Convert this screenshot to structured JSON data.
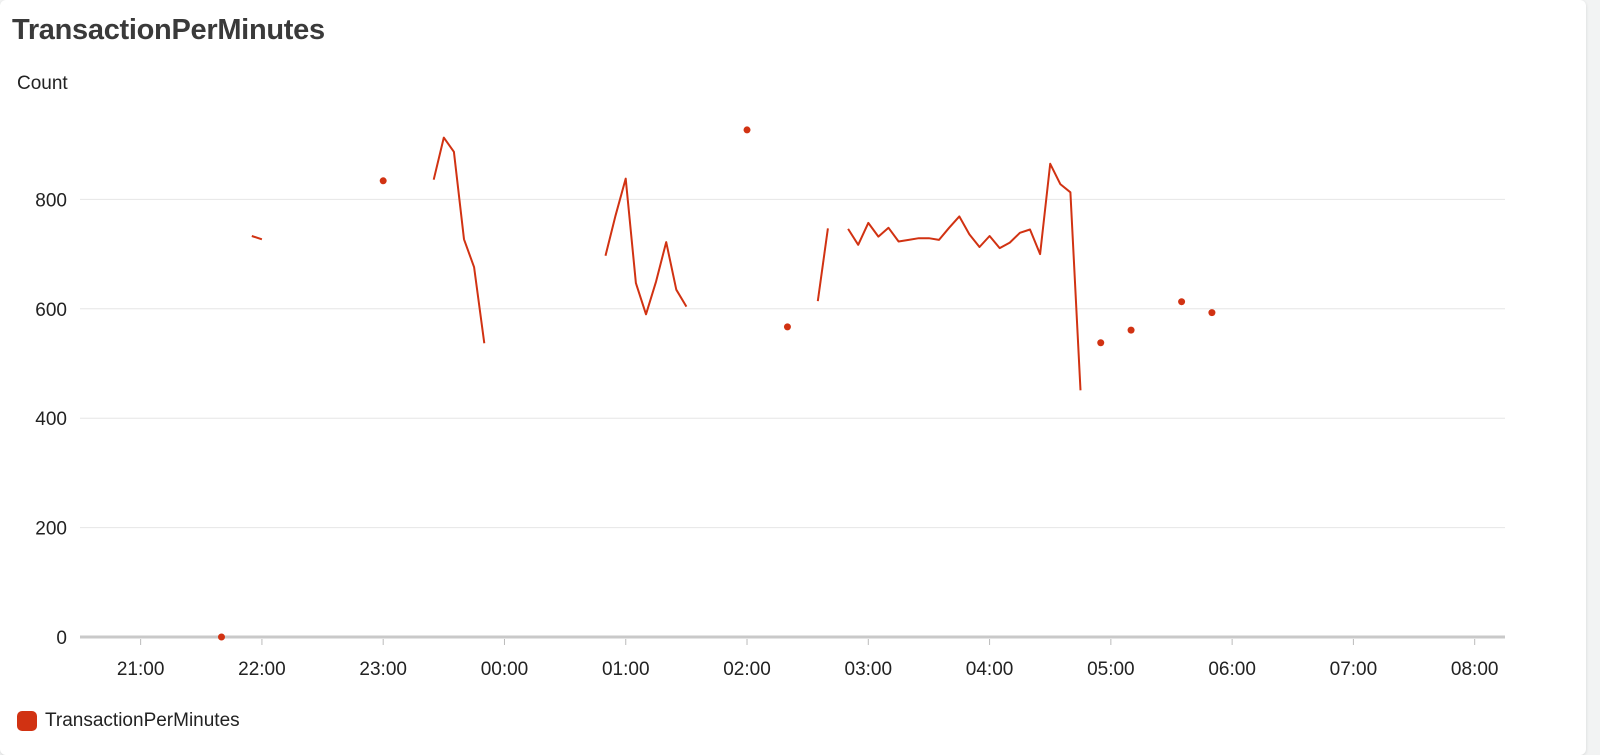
{
  "chart_data": {
    "type": "line",
    "title": "TransactionPerMinutes",
    "ylabel": "Count",
    "xlabel": "",
    "ylim": [
      0,
      1000
    ],
    "yticks": [
      0,
      200,
      400,
      600,
      800
    ],
    "xlim": [
      "20:30",
      "08:15"
    ],
    "xticks": [
      "21:00",
      "22:00",
      "23:00",
      "00:00",
      "01:00",
      "02:00",
      "03:00",
      "04:00",
      "05:00",
      "06:00",
      "07:00",
      "08:00"
    ],
    "grid": "horizontal",
    "legend_position": "bottom-left",
    "series": [
      {
        "name": "TransactionPerMinutes",
        "color": "#d13212",
        "segments": [
          [
            [
              "21:40",
              0
            ]
          ],
          [
            [
              "21:55",
              733
            ],
            [
              "22:00",
              727
            ]
          ],
          [
            [
              "23:00",
              834
            ]
          ],
          [
            [
              "23:25",
              836
            ],
            [
              "23:30",
              913
            ],
            [
              "23:35",
              887
            ],
            [
              "23:40",
              727
            ],
            [
              "23:45",
              676
            ],
            [
              "23:50",
              537
            ]
          ],
          [
            [
              "00:50",
              697
            ],
            [
              "00:55",
              771
            ],
            [
              "01:00",
              838
            ],
            [
              "01:05",
              647
            ],
            [
              "01:10",
              590
            ],
            [
              "01:15",
              650
            ],
            [
              "01:20",
              722
            ],
            [
              "01:25",
              635
            ],
            [
              "01:30",
              604
            ]
          ],
          [
            [
              "02:00",
              927
            ]
          ],
          [
            [
              "02:20",
              567
            ]
          ],
          [
            [
              "02:35",
              614
            ],
            [
              "02:40",
              747
            ]
          ],
          [
            [
              "02:50",
              746
            ],
            [
              "02:55",
              717
            ],
            [
              "03:00",
              757
            ],
            [
              "03:05",
              732
            ],
            [
              "03:10",
              748
            ],
            [
              "03:15",
              723
            ],
            [
              "03:20",
              726
            ],
            [
              "03:25",
              729
            ],
            [
              "03:30",
              729
            ],
            [
              "03:35",
              726
            ],
            [
              "03:40",
              748
            ],
            [
              "03:45",
              769
            ],
            [
              "03:50",
              736
            ],
            [
              "03:55",
              713
            ],
            [
              "04:00",
              733
            ],
            [
              "04:05",
              711
            ],
            [
              "04:10",
              721
            ],
            [
              "04:15",
              739
            ],
            [
              "04:20",
              745
            ],
            [
              "04:25",
              700
            ],
            [
              "04:30",
              865
            ],
            [
              "04:35",
              828
            ],
            [
              "04:40",
              813
            ],
            [
              "04:45",
              451
            ]
          ],
          [
            [
              "04:55",
              538
            ]
          ],
          [
            [
              "05:10",
              561
            ]
          ],
          [
            [
              "05:35",
              613
            ]
          ],
          [
            [
              "05:50",
              593
            ]
          ]
        ]
      }
    ]
  }
}
